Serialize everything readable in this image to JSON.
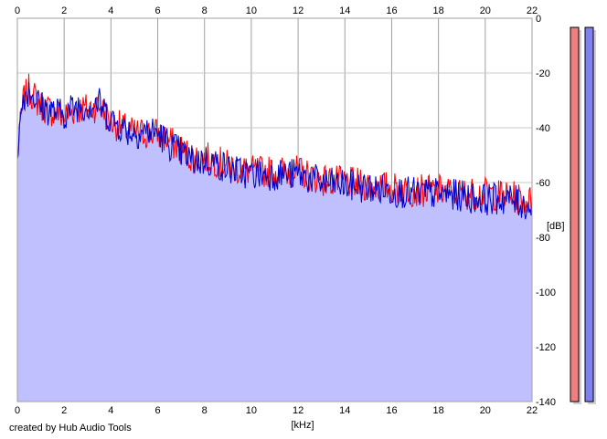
{
  "credit_text": "created by Hub Audio Tools",
  "chart_data": {
    "type": "area",
    "title": "",
    "xlabel": "[kHz]",
    "ylabel": "[dB]",
    "xlim": [
      0,
      22
    ],
    "ylim": [
      -140,
      0
    ],
    "x_ticks": [
      0,
      2,
      4,
      6,
      8,
      10,
      12,
      14,
      16,
      18,
      20,
      22
    ],
    "y_ticks": [
      0,
      -20,
      -40,
      -60,
      -80,
      -100,
      -120,
      -140
    ],
    "grid": true,
    "series": [
      {
        "color": "#ff0000",
        "x": [
          0,
          0.25,
          0.5,
          1,
          1.5,
          2,
          2.5,
          3,
          3.5,
          4,
          4.5,
          5,
          5.5,
          6,
          6.5,
          7,
          7.5,
          8,
          8.5,
          9,
          9.5,
          10,
          11,
          12,
          13,
          14,
          15,
          16,
          17,
          18,
          19,
          20,
          21,
          22
        ],
        "values": [
          -50,
          -30,
          -26,
          -32,
          -34,
          -36,
          -33,
          -33,
          -32,
          -38,
          -40,
          -42,
          -42,
          -42,
          -45,
          -48,
          -51,
          -51,
          -52,
          -54,
          -55,
          -56,
          -56,
          -56,
          -59,
          -60,
          -61,
          -62,
          -63,
          -63,
          -64,
          -64,
          -65,
          -67
        ]
      },
      {
        "color": "#0000cc",
        "x": [
          0,
          0.25,
          0.5,
          1,
          1.5,
          2,
          2.5,
          3,
          3.5,
          4,
          4.5,
          5,
          5.5,
          6,
          6.5,
          7,
          7.5,
          8,
          8.5,
          9,
          9.5,
          10,
          11,
          12,
          13,
          14,
          15,
          16,
          17,
          18,
          19,
          20,
          21,
          22
        ],
        "values": [
          -48,
          -28,
          -26,
          -32,
          -34,
          -35,
          -32,
          -32,
          -31,
          -37,
          -40,
          -42,
          -41,
          -42,
          -46,
          -49,
          -52,
          -52,
          -53,
          -55,
          -56,
          -57,
          -57,
          -57,
          -60,
          -61,
          -62,
          -63,
          -64,
          -64,
          -65,
          -66,
          -66,
          -69
        ]
      }
    ],
    "fill_color": "#c0c0ff",
    "meters": [
      {
        "color": "#f08080",
        "level": 1.0
      },
      {
        "color": "#8080f0",
        "level": 1.0
      }
    ]
  }
}
